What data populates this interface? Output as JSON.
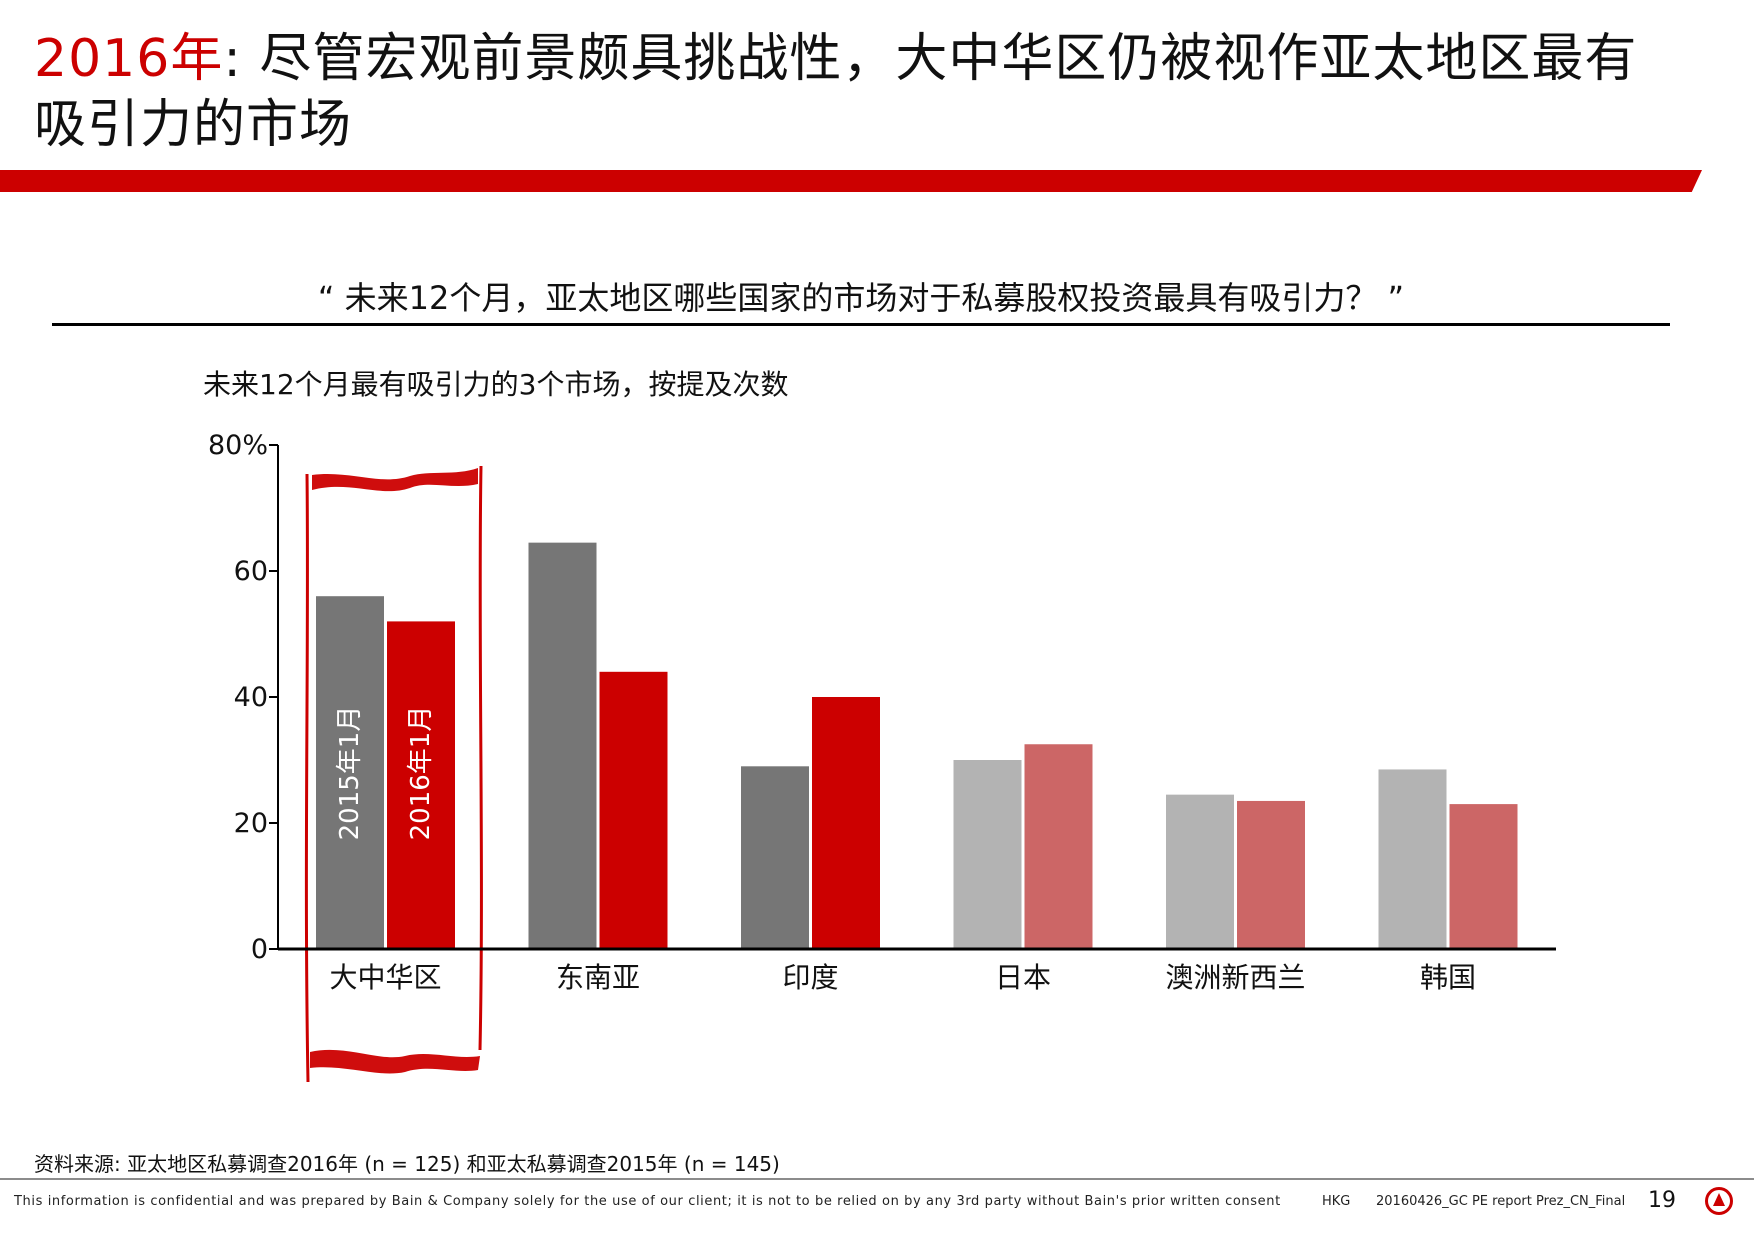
{
  "header": {
    "title_accent": "2016年",
    "title_rest": ": 尽管宏观前景颇具挑战性，大中华区仍被视作亚太地区最有吸引力的市场",
    "band_color": "#cc0000"
  },
  "question": "“ 未来12个月，亚太地区哪些国家的市场对于私募股权投资最具有吸引力？ ”",
  "chart_subtitle": "未来12个月最有吸引力的3个市场，按提及次数",
  "chart_data": {
    "type": "bar",
    "title": "未来12个月最有吸引力的3个市场，按提及次数",
    "xlabel": "",
    "ylabel": "",
    "ylim": [
      0,
      80
    ],
    "yticks": [
      0,
      20,
      40,
      60,
      80
    ],
    "ytick_labels": [
      "0",
      "20",
      "40",
      "60",
      "80%"
    ],
    "categories": [
      "大中华区",
      "东南亚",
      "印度",
      "日本",
      "澳洲新西兰",
      "韩国"
    ],
    "series": [
      {
        "name": "2015年1月",
        "values": [
          56,
          64.5,
          29,
          30,
          24.5,
          28.5
        ],
        "colors": [
          "#767676",
          "#767676",
          "#767676",
          "#b3b3b3",
          "#b3b3b3",
          "#b3b3b3"
        ]
      },
      {
        "name": "2016年1月",
        "values": [
          52,
          44,
          40,
          32.5,
          23.5,
          23
        ],
        "colors": [
          "#cc0000",
          "#cc0000",
          "#cc0000",
          "#cc6666",
          "#cc6666",
          "#cc6666"
        ]
      }
    ],
    "legend": "series names written vertically inside the first category's bars",
    "highlight_category": "大中华区",
    "highlight_color": "#cc0000",
    "grid": false
  },
  "footer": {
    "source": "资料来源: 亚太地区私募调查2016年 (n = 125) 和亚太私募调查2015年 (n = 145)",
    "disclaimer": "This information is confidential and was prepared by Bain & Company solely for the use of our client; it is not to be relied on by any 3rd party without Bain's prior written consent",
    "office_code": "HKG",
    "file_name": "20160426_GC PE report Prez_CN_Final",
    "page_number": "19",
    "logo_icon": "bain-logo-icon"
  }
}
